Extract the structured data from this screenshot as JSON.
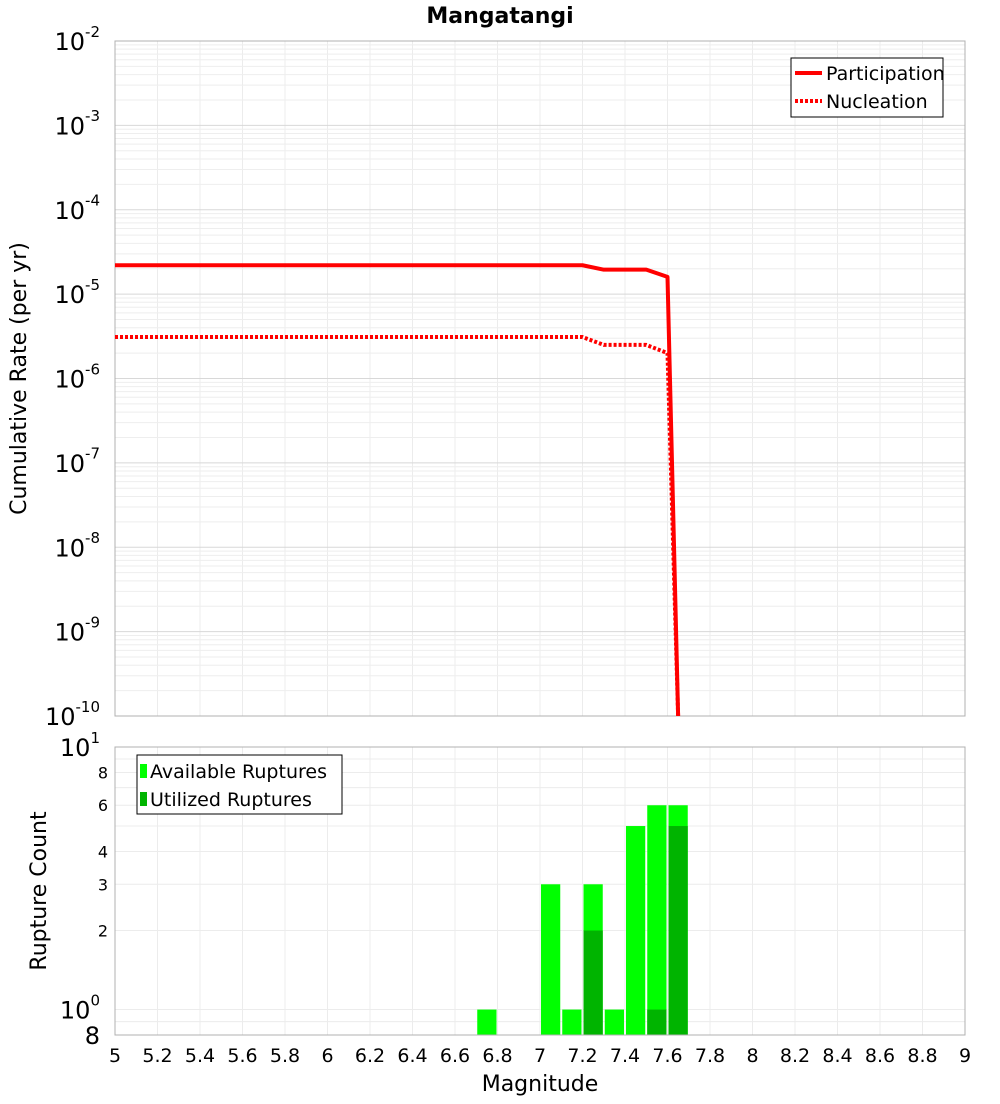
{
  "title": "Mangatangi",
  "chart_data": [
    {
      "type": "line",
      "title": "Mangatangi",
      "xlabel": "",
      "ylabel": "Cumulative Rate (per yr)",
      "yscale": "log",
      "xlim": [
        5,
        9
      ],
      "ylim": [
        1e-10,
        0.01
      ],
      "y_ticks": [
        {
          "base": "10",
          "exp": "-10"
        },
        {
          "base": "10",
          "exp": "-9"
        },
        {
          "base": "10",
          "exp": "-8"
        },
        {
          "base": "10",
          "exp": "-7"
        },
        {
          "base": "10",
          "exp": "-6"
        },
        {
          "base": "10",
          "exp": "-5"
        },
        {
          "base": "10",
          "exp": "-4"
        },
        {
          "base": "10",
          "exp": "-3"
        },
        {
          "base": "10",
          "exp": "-2"
        }
      ],
      "grid": true,
      "legend_position": "top-right",
      "series": [
        {
          "name": "Participation",
          "style": "solid",
          "color": "#ff0000",
          "x": [
            5.0,
            7.2,
            7.3,
            7.4,
            7.5,
            7.6,
            7.65
          ],
          "y": [
            2.2e-05,
            2.2e-05,
            1.95e-05,
            1.95e-05,
            1.95e-05,
            1.6e-05,
            1e-10
          ]
        },
        {
          "name": "Nucleation",
          "style": "dotted",
          "color": "#ff0000",
          "x": [
            5.0,
            7.2,
            7.3,
            7.4,
            7.5,
            7.6,
            7.65
          ],
          "y": [
            3.1e-06,
            3.1e-06,
            2.5e-06,
            2.5e-06,
            2.5e-06,
            2e-06,
            1e-10
          ]
        }
      ]
    },
    {
      "type": "bar",
      "xlabel": "Magnitude",
      "ylabel": "Rupture Count",
      "yscale": "log",
      "xlim": [
        5,
        9
      ],
      "ylim": [
        0.8,
        10
      ],
      "x_ticks": [
        "5",
        "5.2",
        "5.4",
        "5.6",
        "5.8",
        "6",
        "6.2",
        "6.4",
        "6.6",
        "6.8",
        "7",
        "7.2",
        "7.4",
        "7.6",
        "7.8",
        "8",
        "8.2",
        "8.4",
        "8.6",
        "8.8",
        "9"
      ],
      "y_ticks": [
        {
          "label": "8",
          "exp": "",
          "value": 0.8,
          "major": true
        },
        {
          "label": "10",
          "exp": "0",
          "value": 1,
          "major": true
        },
        {
          "label": "2",
          "exp": "",
          "value": 2,
          "major": false
        },
        {
          "label": "3",
          "exp": "",
          "value": 3,
          "major": false
        },
        {
          "label": "4",
          "exp": "",
          "value": 4,
          "major": false
        },
        {
          "label": "6",
          "exp": "",
          "value": 6,
          "major": false
        },
        {
          "label": "8",
          "exp": "",
          "value": 8,
          "major": false
        },
        {
          "label": "10",
          "exp": "1",
          "value": 10,
          "major": true
        }
      ],
      "bin_width": 0.1,
      "grid": true,
      "legend_position": "top-left",
      "series": [
        {
          "name": "Available Ruptures",
          "color": "#00ff00",
          "x": [
            6.75,
            7.05,
            7.15,
            7.25,
            7.35,
            7.45,
            7.55,
            7.65
          ],
          "values": [
            1,
            3,
            1,
            3,
            1,
            5,
            6,
            6
          ]
        },
        {
          "name": "Utilized Ruptures",
          "color": "#00b400",
          "x": [
            7.25,
            7.55,
            7.65
          ],
          "values": [
            2,
            1,
            5
          ]
        }
      ]
    }
  ]
}
